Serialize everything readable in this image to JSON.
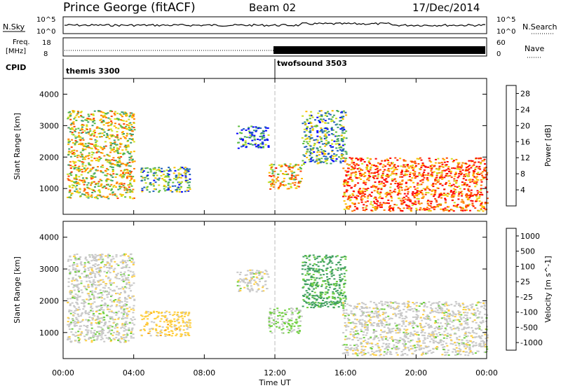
{
  "header": {
    "station": "Prince George (fitACF)",
    "beam": "Beam 02",
    "date": "17/Dec/2014"
  },
  "strips": {
    "nsky": {
      "label": "N.Sky",
      "tick_top": "10^5",
      "tick_bottom": "10^0",
      "right_label": "N.Search",
      "right_tick_top": "10^5",
      "right_tick_bottom": "10^0"
    },
    "freq": {
      "label_line1": "Freq.",
      "label_line2": "[MHz]",
      "tick_top": "18",
      "tick_bottom": "8",
      "right_label": "Nave",
      "right_tick_top": "60",
      "right_tick_bottom": "0"
    },
    "cpid": {
      "label": "CPID",
      "programs": [
        {
          "name": "themis 3300",
          "start_hour": 0
        },
        {
          "name": "twofsound 3503",
          "start_hour": 12
        }
      ]
    }
  },
  "colors": {
    "power_scale": [
      "#0000ff",
      "#1f5fbf",
      "#3f9f6f",
      "#5fbf3f",
      "#cfdf1f",
      "#ffbf00",
      "#ff7f00",
      "#ff3f00",
      "#ff0000"
    ],
    "velocity_scale": [
      "#ff0000",
      "#ff5000",
      "#ff9f00",
      "#ffcf40",
      "#c8c8c8",
      "#6fcf3f",
      "#3f9f5f",
      "#2f5fbf",
      "#1f3fbf"
    ],
    "ground_scatter": "#c8c8c8"
  },
  "chart_data": [
    {
      "type": "heatmap",
      "title": "",
      "xlabel": "Time UT",
      "ylabel": "Slant Range [km]",
      "xlim": [
        0,
        24
      ],
      "ylim": [
        180,
        4500
      ],
      "x_ticks": [
        "00:00",
        "04:00",
        "08:00",
        "12:00",
        "16:00",
        "20:00",
        "00:00"
      ],
      "y_ticks": [
        "1000",
        "2000",
        "3000",
        "4000"
      ],
      "colorbar": {
        "label": "Power [dB]",
        "ticks": [
          "4",
          "8",
          "12",
          "16",
          "20",
          "24",
          "28"
        ],
        "range": [
          0,
          30
        ]
      },
      "echo_regions": [
        {
          "t_start": 0.2,
          "t_end": 4.0,
          "range_low": 700,
          "range_high": 3500,
          "value": 16
        },
        {
          "t_start": 4.3,
          "t_end": 7.2,
          "range_low": 900,
          "range_high": 1700,
          "value": 10
        },
        {
          "t_start": 9.8,
          "t_end": 11.6,
          "range_low": 2300,
          "range_high": 3000,
          "value": 6
        },
        {
          "t_start": 11.6,
          "t_end": 13.5,
          "range_low": 1000,
          "range_high": 1800,
          "value": 18
        },
        {
          "t_start": 13.5,
          "t_end": 16.0,
          "range_low": 1800,
          "range_high": 3500,
          "value": 10
        },
        {
          "t_start": 15.8,
          "t_end": 24.0,
          "range_low": 300,
          "range_high": 2000,
          "value": 24
        }
      ]
    },
    {
      "type": "heatmap",
      "title": "",
      "xlabel": "Time UT",
      "ylabel": "Slant Range [km]",
      "xlim": [
        0,
        24
      ],
      "ylim": [
        180,
        4500
      ],
      "x_ticks": [
        "00:00",
        "04:00",
        "08:00",
        "12:00",
        "16:00",
        "20:00",
        "00:00"
      ],
      "y_ticks": [
        "1000",
        "2000",
        "3000",
        "4000"
      ],
      "colorbar": {
        "label": "Velocity [m s^-1]",
        "ticks": [
          "1000",
          "500",
          "100",
          "25",
          "-25",
          "-100",
          "-500",
          "-1000"
        ],
        "range": [
          -1000,
          1000
        ]
      },
      "echo_regions": [
        {
          "t_start": 0.2,
          "t_end": 4.0,
          "range_low": 700,
          "range_high": 3500,
          "value": 0
        },
        {
          "t_start": 4.3,
          "t_end": 7.2,
          "range_low": 900,
          "range_high": 1700,
          "value": -200
        },
        {
          "t_start": 9.8,
          "t_end": 11.6,
          "range_low": 2300,
          "range_high": 3000,
          "value": 0
        },
        {
          "t_start": 11.6,
          "t_end": 13.5,
          "range_low": 1000,
          "range_high": 1800,
          "value": 150
        },
        {
          "t_start": 13.5,
          "t_end": 16.0,
          "range_low": 1800,
          "range_high": 3500,
          "value": 400
        },
        {
          "t_start": 15.8,
          "t_end": 24.0,
          "range_low": 300,
          "range_high": 2000,
          "value": 0
        }
      ]
    }
  ]
}
